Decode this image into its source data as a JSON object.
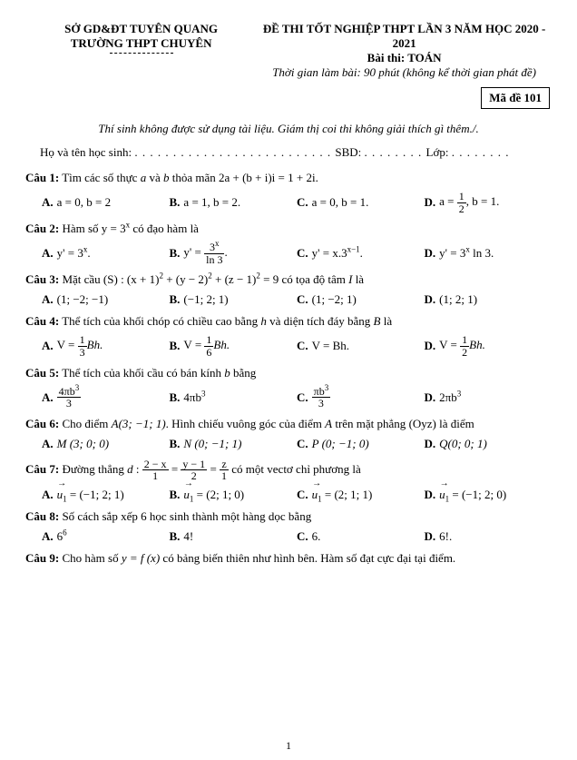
{
  "header": {
    "left1": "SỞ GD&ĐT TUYÊN QUANG",
    "left2": "TRƯỜNG THPT CHUYÊN",
    "right1": "ĐỀ THI TỐT NGHIỆP THPT LẦN 3 NĂM HỌC 2020 - 2021",
    "right2": "Bài thi: TOÁN",
    "right3": "Thời gian làm bài: 90 phút (không kể thời gian phát đề)",
    "code": "Mã đề 101"
  },
  "instruction": "Thí sinh không được sử dụng tài liệu. Giám thị coi thi không giải thích gì thêm./.",
  "fill": {
    "name_label": "Họ và tên học sinh:",
    "sbd_label": "SBD:",
    "class_label": "Lớp:"
  },
  "q1": {
    "label": "Câu 1:",
    "text_a": "Tìm các số thực ",
    "var_a": "a",
    "text_b": " và ",
    "var_b": "b",
    "text_c": " thỏa mãn 2a + (b + i)i = 1 + 2i.",
    "A": "a = 0, b = 2",
    "B": "a = 1, b = 2.",
    "C": "a = 0, b = 1.",
    "D_pre": "a = ",
    "D_num": "1",
    "D_den": "2",
    "D_post": ", b = 1."
  },
  "q2": {
    "label": "Câu 2:",
    "text_a": "Hàm số ",
    "eq": "y = 3",
    "sup": "x",
    "text_b": " có đạo hàm là",
    "A": "y' = 3",
    "A_sup": "x",
    "A_end": ".",
    "B_pre": "y' = ",
    "B_num": "3",
    "B_num_sup": "x",
    "B_den": "ln 3",
    "B_end": ".",
    "C": "y' = x.3",
    "C_sup": "x−1",
    "C_end": ".",
    "D": "y' = 3",
    "D_sup": "x",
    "D_end": " ln 3."
  },
  "q3": {
    "label": "Câu 3:",
    "text_a": "Mặt cầu (S) : (x + 1)",
    "text_b": " + (y − 2)",
    "text_c": " + (z − 1)",
    "text_d": " = 9 có tọa độ tâm ",
    "I": "I",
    "text_e": " là",
    "A": "(1; −2; −1)",
    "B": "(−1; 2; 1)",
    "C": "(1; −2; 1)",
    "D": "(1; 2; 1)"
  },
  "q4": {
    "label": "Câu 4:",
    "text_a": "Thể tích của khối chóp có chiều cao bằng ",
    "h": "h",
    "text_b": " và diện tích đáy bằng ",
    "B": "B",
    "text_c": " là",
    "A_pre": "V = ",
    "A_num": "1",
    "A_den": "3",
    "A_post": "Bh.",
    "B_pre": "V = ",
    "B_num": "1",
    "B_den": "6",
    "B_post": "Bh.",
    "optC": "V = Bh.",
    "D_pre": "V = ",
    "D_num": "1",
    "D_den": "2",
    "D_post": "Bh."
  },
  "q5": {
    "label": "Câu 5:",
    "text_a": "Thể tích của khối cầu có bán kính ",
    "b": "b",
    "text_b": " bằng",
    "A_num": "4πb",
    "A_num_sup": "3",
    "A_den": "3",
    "optB": "4πb",
    "B_sup": "3",
    "C_num": "πb",
    "C_num_sup": "3",
    "C_den": "3",
    "optD": "2πb",
    "D_sup": "3"
  },
  "q6": {
    "label": "Câu 6:",
    "text_a": "Cho điểm ",
    "A_pt": "A(3; −1; 1)",
    "text_b": ". Hình chiếu vuông góc của điểm ",
    "A_var": "A",
    "text_c": " trên mặt phẳng ",
    "Oyz": "(Oyz)",
    "text_d": " là điểm",
    "optA": "M (3; 0; 0)",
    "optB": "N (0; −1; 1)",
    "optC": "P (0; −1; 0)",
    "optD": "Q(0; 0; 1)"
  },
  "q7": {
    "label": "Câu 7:",
    "text_a": "Đường thẳng ",
    "d": "d",
    "text_b": " : ",
    "f1_num": "2 − x",
    "f1_den": "1",
    "eq": " = ",
    "f2_num": "y − 1",
    "f2_den": "2",
    "f3_num": "z",
    "f3_den": "1",
    "text_c": " có một vectơ chỉ phương là",
    "u": "u",
    "sub1": "1",
    "optA": " = (−1; 2; 1)",
    "optB": " = (2; 1; 0)",
    "optC": " = (2; 1; 1)",
    "optD": " = (−1; 2; 0)"
  },
  "q8": {
    "label": "Câu 8:",
    "text": "Số cách sắp xếp 6 học sinh thành một hàng dọc bằng",
    "optA": "6",
    "A_sup": "6",
    "optB": "4!",
    "optC": "6.",
    "optD": "6!."
  },
  "q9": {
    "label": "Câu 9:",
    "text_a": "Cho hàm số ",
    "eq": "y = f (x)",
    "text_b": " có bảng biến thiên như hình bên. Hàm số đạt cực đại tại điểm."
  },
  "page": "1"
}
